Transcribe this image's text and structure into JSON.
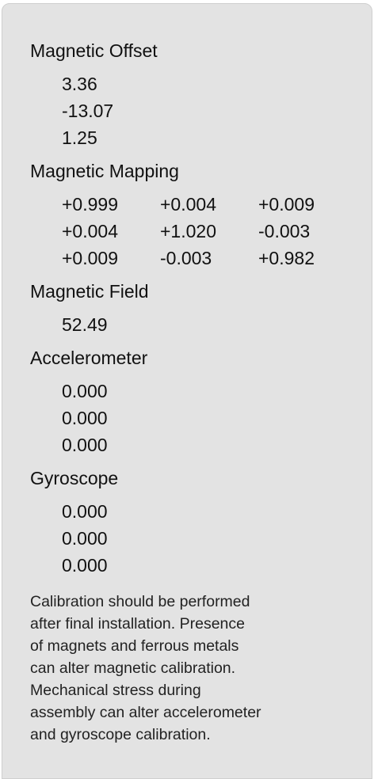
{
  "magnetic_offset": {
    "title": "Magnetic Offset",
    "values": [
      "3.36",
      "-13.07",
      "1.25"
    ]
  },
  "magnetic_mapping": {
    "title": "Magnetic Mapping",
    "rows": [
      [
        "+0.999",
        "+0.004",
        "+0.009"
      ],
      [
        "+0.004",
        "+1.020",
        "-0.003"
      ],
      [
        "+0.009",
        "-0.003",
        "+0.982"
      ]
    ]
  },
  "magnetic_field": {
    "title": "Magnetic Field",
    "value": "52.49"
  },
  "accelerometer": {
    "title": "Accelerometer",
    "values": [
      "0.000",
      "0.000",
      "0.000"
    ]
  },
  "gyroscope": {
    "title": "Gyroscope",
    "values": [
      "0.000",
      "0.000",
      "0.000"
    ]
  },
  "note_lines": [
    "Calibration should be performed",
    "after final installation.  Presence",
    "of magnets and ferrous metals",
    "can alter magnetic calibration.",
    "Mechanical stress during",
    "assembly can alter accelerometer",
    "and gyroscope calibration."
  ]
}
